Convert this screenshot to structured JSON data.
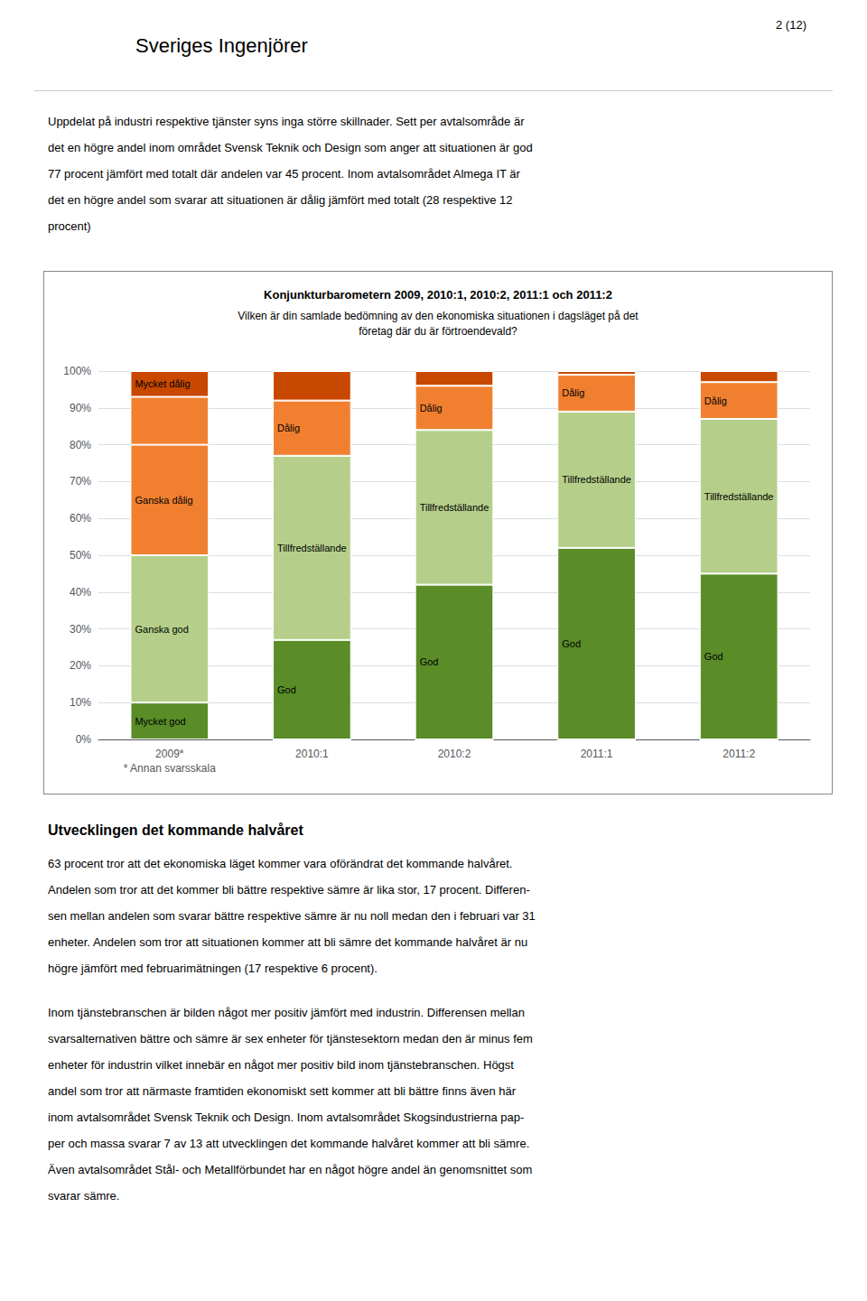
{
  "page_header": "2 (12)",
  "logo_text": "Sveriges Ingenjörer",
  "intro_lines": [
    "Uppdelat på industri respektive tjänster syns inga större skillnader. Sett per avtalsområde är",
    "det en högre andel inom området Svensk Teknik och Design som anger att situationen är god",
    "77 procent jämfört med totalt där andelen var 45 procent. Inom avtalsområdet Almega IT är",
    "det en högre andel som svarar att situationen är dålig jämfört med totalt (28 respektive 12",
    "procent)"
  ],
  "footer_heading": "Utvecklingen det kommande halvåret",
  "footer_paragraphs": [
    [
      "63 procent tror att det ekonomiska läget kommer vara oförändrat det kommande halvåret.",
      "Andelen som tror att det kommer bli bättre respektive sämre är lika stor, 17 procent. Differen-",
      "sen mellan andelen som svarar bättre respektive sämre är nu noll medan den i februari var 31",
      "enheter. Andelen som tror att situationen kommer att bli sämre det kommande halvåret är nu",
      "högre jämfört med februarimätningen (17 respektive 6 procent)."
    ],
    [
      "Inom tjänstebranschen är bilden något mer positiv jämfört med industrin. Differensen mellan",
      "svarsalternativen bättre och sämre är sex enheter för tjänstesektorn medan den är minus fem",
      "enheter för industrin vilket innebär en något mer positiv bild inom tjänstebranschen. Högst",
      "andel som tror att närmaste framtiden ekonomiskt sett kommer att bli bättre finns även här",
      "inom avtalsområdet Svensk Teknik och Design. Inom avtalsområdet Skogsindustrierna pap-",
      "per och massa svarar 7 av 13 att utvecklingen det kommande halvåret kommer att bli sämre.",
      "Även avtalsområdet Stål- och Metallförbundet har en något högre andel än genomsnittet som",
      "svarar sämre."
    ]
  ],
  "chart_data": {
    "type": "bar",
    "stacked": true,
    "grid": true,
    "title": "Konjunkturbarometern 2009, 2010:1, 2010:2, 2011:1 och 2011:2",
    "subtitle": "Vilken är din samlade bedömning av den ekonomiska situationen i dagsläget på det\nföretag där du är förtroendevald?",
    "categories": [
      "2009*\n* Annan svarsskala",
      "2010:1",
      "2010:2",
      "2011:1",
      "2011:2"
    ],
    "series": [
      {
        "name": "Mycket god",
        "color": "#5a8c28",
        "values": [
          10,
          0,
          0,
          0,
          0
        ]
      },
      {
        "name": "Ganska god",
        "color": "#b5cf8a",
        "values": [
          40,
          0,
          0,
          0,
          0
        ]
      },
      {
        "name": "God",
        "color": "#5a8c28",
        "values": [
          0,
          27,
          42,
          52,
          45
        ]
      },
      {
        "name": "Tillfredställande",
        "color": "#b5cf8a",
        "values": [
          0,
          50,
          42,
          37,
          42
        ]
      },
      {
        "name": "Ganska dålig",
        "color": "#f08030",
        "values": [
          30,
          0,
          0,
          0,
          0
        ]
      },
      {
        "name": "Dålig",
        "color": "#f08030",
        "values": [
          13,
          15,
          12,
          10,
          10
        ]
      },
      {
        "name": "Mycket dålig",
        "color": "#c84800",
        "values": [
          7,
          8,
          4,
          1,
          3
        ]
      }
    ],
    "ylim": [
      0,
      100
    ],
    "yticks": [
      {
        "value": 0,
        "label": "0%"
      },
      {
        "value": 10,
        "label": "10%"
      },
      {
        "value": 20,
        "label": "20%"
      },
      {
        "value": 30,
        "label": "30%"
      },
      {
        "value": 40,
        "label": "40%"
      },
      {
        "value": 50,
        "label": "50%"
      },
      {
        "value": 60,
        "label": "60%"
      },
      {
        "value": 70,
        "label": "70%"
      },
      {
        "value": 80,
        "label": "80%"
      },
      {
        "value": 90,
        "label": "90%"
      },
      {
        "value": 100,
        "label": "100%"
      }
    ],
    "annotations": [
      {
        "text": "Mycket god",
        "series": "Mycket god",
        "category": "2009*\n* Annan svarsskala"
      },
      {
        "text": "Ganska god",
        "series": "Ganska god",
        "category": "2009*\n* Annan svarsskala"
      },
      {
        "text": "Ganska dålig",
        "series": "Ganska dålig",
        "category": "2009*\n* Annan svarsskala"
      },
      {
        "text": "Mycket dålig",
        "series": "Mycket dålig",
        "category": "2009*\n* Annan svarsskala"
      },
      {
        "text": "God",
        "series": "God",
        "category": "2010:1"
      },
      {
        "text": "Tillfredställande",
        "series": "Tillfredställande",
        "category": "2010:1"
      },
      {
        "text": "Dålig",
        "series": "Dålig",
        "category": "2010:1"
      },
      {
        "text": "God",
        "series": "God",
        "category": "2010:2"
      },
      {
        "text": "Tillfredställande",
        "series": "Tillfredställande",
        "category": "2010:2"
      },
      {
        "text": "Dålig",
        "series": "Dålig",
        "category": "2010:2"
      },
      {
        "text": "God",
        "series": "God",
        "category": "2011:1"
      },
      {
        "text": "Tillfredställande",
        "series": "Tillfredställande",
        "category": "2011:1"
      },
      {
        "text": "Dålig",
        "series": "Dålig",
        "category": "2011:1"
      },
      {
        "text": "God",
        "series": "God",
        "category": "2011:2"
      },
      {
        "text": "Tillfredställande",
        "series": "Tillfredställande",
        "category": "2011:2"
      },
      {
        "text": "Dålig",
        "series": "Dålig",
        "category": "2011:2"
      }
    ]
  }
}
